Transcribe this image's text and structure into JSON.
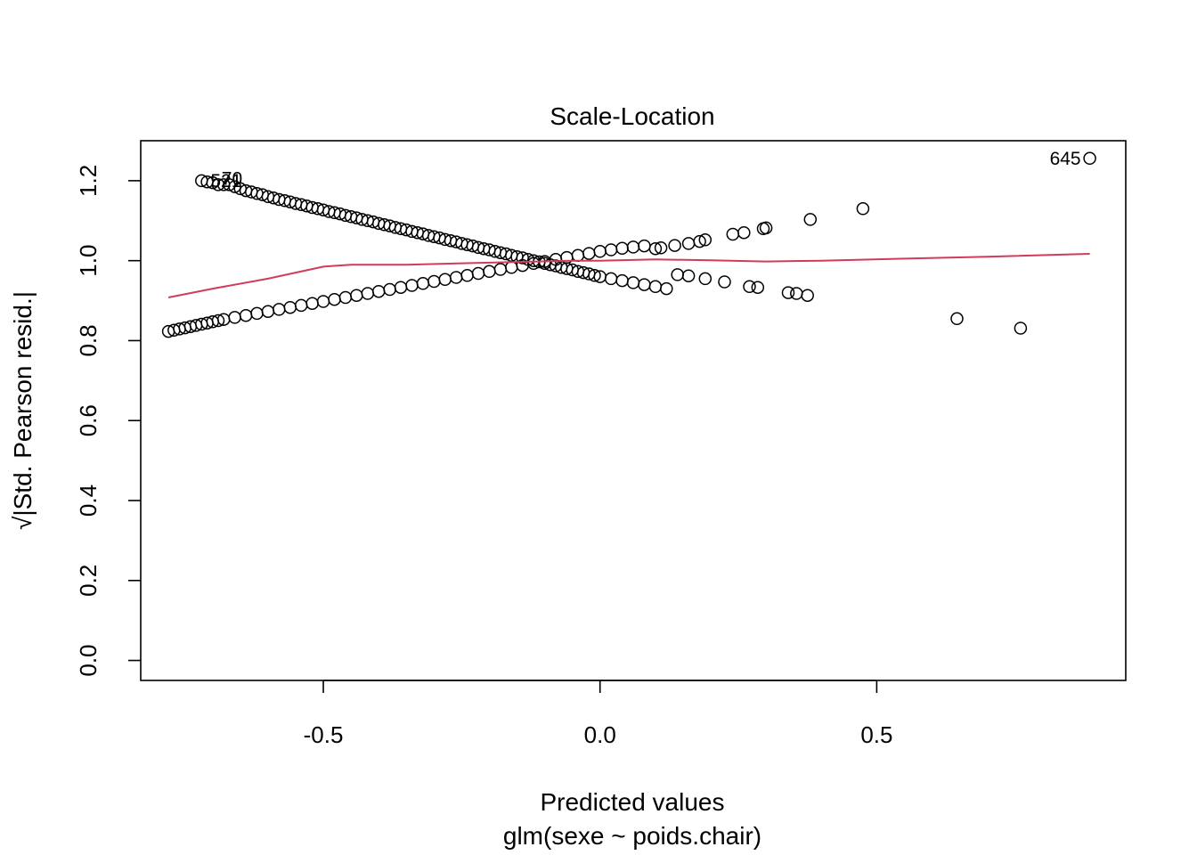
{
  "chart_data": {
    "type": "scatter",
    "title": "Scale-Location",
    "xlabel": "Predicted values",
    "subtitle": "glm(sexe ~ poids.chair)",
    "ylabel": "√|Std. Pearson resid.|",
    "xlim": [
      -0.83,
      0.95
    ],
    "ylim": [
      -0.05,
      1.3
    ],
    "x_ticks": [
      {
        "value": -0.5,
        "label": "-0.5"
      },
      {
        "value": 0.0,
        "label": "0.0"
      },
      {
        "value": 0.5,
        "label": "0.5"
      }
    ],
    "y_ticks": [
      {
        "value": 0.0,
        "label": "0.0"
      },
      {
        "value": 0.2,
        "label": "0.2"
      },
      {
        "value": 0.4,
        "label": "0.4"
      },
      {
        "value": 0.6,
        "label": "0.6"
      },
      {
        "value": 0.8,
        "label": "0.8"
      },
      {
        "value": 1.0,
        "label": "1.0"
      },
      {
        "value": 1.2,
        "label": "1.2"
      }
    ],
    "grid": false,
    "series": [
      {
        "marker": "open-circle",
        "color": "#000000",
        "points": [
          [
            -0.72,
            1.2
          ],
          [
            -0.71,
            1.197
          ],
          [
            -0.7,
            1.195
          ],
          [
            -0.69,
            1.19
          ],
          [
            -0.68,
            1.19
          ],
          [
            -0.67,
            1.19
          ],
          [
            -0.66,
            1.185
          ],
          [
            -0.65,
            1.18
          ],
          [
            -0.64,
            1.175
          ],
          [
            -0.63,
            1.172
          ],
          [
            -0.62,
            1.168
          ],
          [
            -0.61,
            1.165
          ],
          [
            -0.6,
            1.16
          ],
          [
            -0.59,
            1.157
          ],
          [
            -0.58,
            1.153
          ],
          [
            -0.57,
            1.15
          ],
          [
            -0.56,
            1.147
          ],
          [
            -0.55,
            1.143
          ],
          [
            -0.54,
            1.14
          ],
          [
            -0.53,
            1.137
          ],
          [
            -0.52,
            1.133
          ],
          [
            -0.51,
            1.13
          ],
          [
            -0.5,
            1.127
          ],
          [
            -0.49,
            1.123
          ],
          [
            -0.48,
            1.12
          ],
          [
            -0.47,
            1.117
          ],
          [
            -0.46,
            1.113
          ],
          [
            -0.45,
            1.11
          ],
          [
            -0.44,
            1.107
          ],
          [
            -0.43,
            1.103
          ],
          [
            -0.42,
            1.1
          ],
          [
            -0.41,
            1.097
          ],
          [
            -0.4,
            1.093
          ],
          [
            -0.39,
            1.09
          ],
          [
            -0.38,
            1.087
          ],
          [
            -0.37,
            1.083
          ],
          [
            -0.36,
            1.08
          ],
          [
            -0.35,
            1.077
          ],
          [
            -0.34,
            1.073
          ],
          [
            -0.33,
            1.07
          ],
          [
            -0.32,
            1.067
          ],
          [
            -0.31,
            1.063
          ],
          [
            -0.3,
            1.06
          ],
          [
            -0.29,
            1.057
          ],
          [
            -0.28,
            1.053
          ],
          [
            -0.27,
            1.05
          ],
          [
            -0.26,
            1.047
          ],
          [
            -0.25,
            1.043
          ],
          [
            -0.24,
            1.04
          ],
          [
            -0.23,
            1.037
          ],
          [
            -0.22,
            1.033
          ],
          [
            -0.21,
            1.03
          ],
          [
            -0.2,
            1.027
          ],
          [
            -0.19,
            1.023
          ],
          [
            -0.18,
            1.02
          ],
          [
            -0.17,
            1.017
          ],
          [
            -0.16,
            1.013
          ],
          [
            -0.15,
            1.01
          ],
          [
            -0.14,
            1.007
          ],
          [
            -0.13,
            1.003
          ],
          [
            -0.12,
            1.0
          ],
          [
            -0.11,
            0.997
          ],
          [
            -0.1,
            0.993
          ],
          [
            -0.09,
            0.99
          ],
          [
            -0.08,
            0.987
          ],
          [
            -0.07,
            0.983
          ],
          [
            -0.06,
            0.98
          ],
          [
            -0.05,
            0.977
          ],
          [
            -0.04,
            0.973
          ],
          [
            -0.03,
            0.97
          ],
          [
            -0.02,
            0.967
          ],
          [
            -0.01,
            0.963
          ],
          [
            0.0,
            0.96
          ],
          [
            0.02,
            0.955
          ],
          [
            0.04,
            0.95
          ],
          [
            0.06,
            0.945
          ],
          [
            0.08,
            0.94
          ],
          [
            0.1,
            0.935
          ],
          [
            0.12,
            0.93
          ],
          [
            0.14,
            0.965
          ],
          [
            0.16,
            0.962
          ],
          [
            0.19,
            0.955
          ],
          [
            0.225,
            0.947
          ],
          [
            0.27,
            0.935
          ],
          [
            0.285,
            0.933
          ],
          [
            0.34,
            0.92
          ],
          [
            0.355,
            0.918
          ],
          [
            0.375,
            0.913
          ],
          [
            0.645,
            0.855
          ],
          [
            0.76,
            0.831
          ],
          [
            -0.78,
            0.823
          ],
          [
            -0.77,
            0.826
          ],
          [
            -0.76,
            0.829
          ],
          [
            -0.75,
            0.832
          ],
          [
            -0.74,
            0.835
          ],
          [
            -0.73,
            0.838
          ],
          [
            -0.72,
            0.841
          ],
          [
            -0.71,
            0.844
          ],
          [
            -0.7,
            0.847
          ],
          [
            -0.69,
            0.85
          ],
          [
            -0.68,
            0.853
          ],
          [
            -0.66,
            0.858
          ],
          [
            -0.64,
            0.863
          ],
          [
            -0.62,
            0.868
          ],
          [
            -0.6,
            0.873
          ],
          [
            -0.58,
            0.878
          ],
          [
            -0.56,
            0.883
          ],
          [
            -0.54,
            0.888
          ],
          [
            -0.52,
            0.893
          ],
          [
            -0.5,
            0.898
          ],
          [
            -0.48,
            0.903
          ],
          [
            -0.46,
            0.908
          ],
          [
            -0.44,
            0.913
          ],
          [
            -0.42,
            0.918
          ],
          [
            -0.4,
            0.923
          ],
          [
            -0.38,
            0.928
          ],
          [
            -0.36,
            0.933
          ],
          [
            -0.34,
            0.938
          ],
          [
            -0.32,
            0.943
          ],
          [
            -0.3,
            0.948
          ],
          [
            -0.28,
            0.953
          ],
          [
            -0.26,
            0.958
          ],
          [
            -0.24,
            0.963
          ],
          [
            -0.22,
            0.968
          ],
          [
            -0.2,
            0.973
          ],
          [
            -0.18,
            0.978
          ],
          [
            -0.16,
            0.983
          ],
          [
            -0.14,
            0.988
          ],
          [
            -0.12,
            0.993
          ],
          [
            -0.1,
            0.998
          ],
          [
            -0.08,
            1.003
          ],
          [
            -0.06,
            1.008
          ],
          [
            -0.04,
            1.013
          ],
          [
            -0.02,
            1.018
          ],
          [
            0.0,
            1.023
          ],
          [
            0.02,
            1.027
          ],
          [
            0.04,
            1.031
          ],
          [
            0.06,
            1.034
          ],
          [
            0.08,
            1.037
          ],
          [
            0.1,
            1.03
          ],
          [
            0.11,
            1.032
          ],
          [
            0.135,
            1.038
          ],
          [
            0.16,
            1.043
          ],
          [
            0.18,
            1.048
          ],
          [
            0.19,
            1.052
          ],
          [
            0.24,
            1.066
          ],
          [
            0.26,
            1.07
          ],
          [
            0.295,
            1.08
          ],
          [
            0.3,
            1.082
          ],
          [
            0.38,
            1.103
          ],
          [
            0.475,
            1.13
          ],
          [
            0.885,
            1.256
          ]
        ]
      },
      {
        "marker": "line",
        "color": "#d03c5a",
        "points": [
          [
            -0.78,
            0.908
          ],
          [
            -0.7,
            0.93
          ],
          [
            -0.6,
            0.955
          ],
          [
            -0.5,
            0.985
          ],
          [
            -0.45,
            0.99
          ],
          [
            -0.35,
            0.99
          ],
          [
            -0.2,
            0.995
          ],
          [
            -0.05,
            1.0
          ],
          [
            0.0,
            1.0
          ],
          [
            0.1,
            1.003
          ],
          [
            0.2,
            1.001
          ],
          [
            0.3,
            0.998
          ],
          [
            0.4,
            1.0
          ],
          [
            0.55,
            1.005
          ],
          [
            0.7,
            1.01
          ],
          [
            0.885,
            1.017
          ]
        ]
      }
    ],
    "point_labels": [
      {
        "x": 0.885,
        "y": 1.256,
        "text": "645",
        "side": "left"
      },
      {
        "x": -0.72,
        "y": 1.2,
        "text": "521",
        "side": "right"
      },
      {
        "x": -0.7,
        "y": 1.205,
        "text": "70",
        "side": "right"
      }
    ]
  }
}
